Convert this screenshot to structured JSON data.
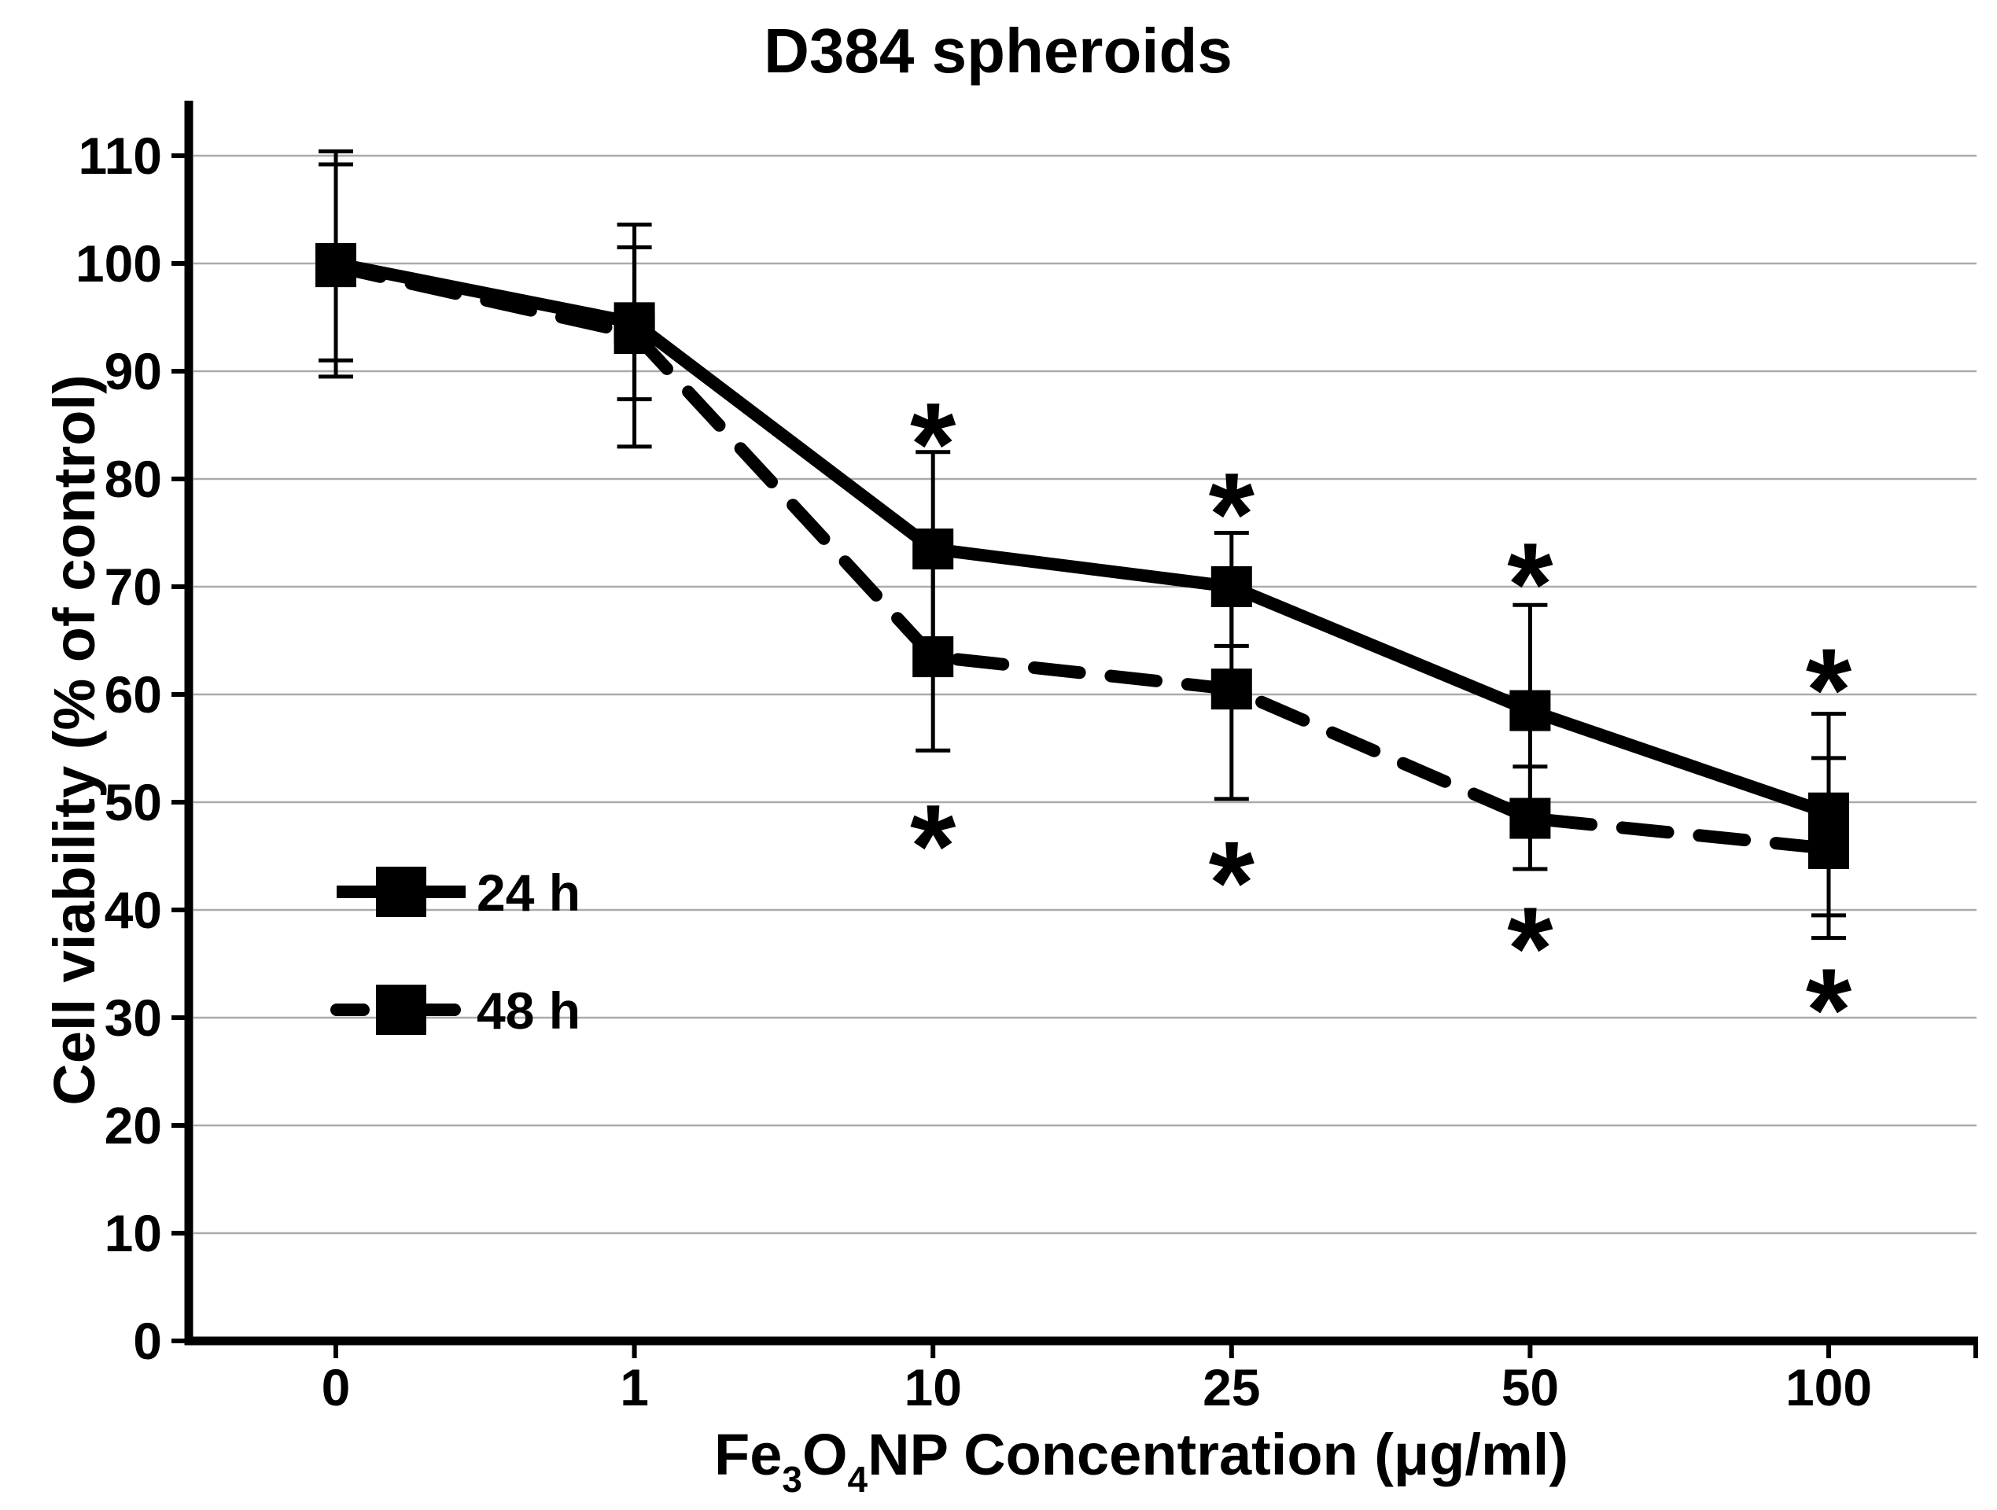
{
  "chart_data": {
    "type": "line",
    "title": "D384 spheroids",
    "xlabel": "Fe₃O₄NP Concentration (μg/ml)",
    "xlabel_parts": [
      {
        "text": "Fe"
      },
      {
        "text": "3",
        "subscript": true
      },
      {
        "text": "O"
      },
      {
        "text": "4",
        "subscript": true
      },
      {
        "text": "NP Concentration (μg/ml)"
      }
    ],
    "ylabel": "Cell viability (% of control)",
    "categories": [
      "0",
      "1",
      "10",
      "25",
      "50",
      "100"
    ],
    "y_ticks": [
      0,
      10,
      20,
      30,
      40,
      50,
      60,
      70,
      80,
      90,
      100,
      110
    ],
    "ylim": [
      0,
      115
    ],
    "grid": "horizontal",
    "legend_position": "inside-left",
    "marker": "filled-square",
    "series": [
      {
        "name": "24 h",
        "line_style": "solid",
        "values": [
          100,
          94.5,
          73.5,
          70,
          58.5,
          49
        ],
        "err_up": [
          10.4,
          9.1,
          9.0,
          5.0,
          9.8,
          9.2
        ],
        "err_down": [
          9.0,
          7.1,
          9.0,
          5.5,
          9.8,
          9.5
        ]
      },
      {
        "name": "48 h",
        "line_style": "dashed",
        "values": [
          99.7,
          93.5,
          63.5,
          60.5,
          48.5,
          45.7
        ],
        "err_up": [
          9.5,
          8.0,
          8.7,
          10.0,
          4.8,
          8.4
        ],
        "err_down": [
          10.2,
          10.5,
          8.7,
          10.2,
          4.7,
          8.3
        ]
      }
    ],
    "significance": {
      "symbol": "*",
      "markers": [
        {
          "series": "24 h",
          "category": "10",
          "position": "above",
          "y": 85
        },
        {
          "series": "24 h",
          "category": "25",
          "position": "above",
          "y": 78.5
        },
        {
          "series": "24 h",
          "category": "50",
          "position": "above",
          "y": 72
        },
        {
          "series": "24 h",
          "category": "100",
          "position": "above",
          "y": 62.2
        },
        {
          "series": "48 h",
          "category": "10",
          "position": "below",
          "y": 47.7
        },
        {
          "series": "48 h",
          "category": "25",
          "position": "below",
          "y": 44.3
        },
        {
          "series": "48 h",
          "category": "50",
          "position": "below",
          "y": 38.2
        },
        {
          "series": "48 h",
          "category": "100",
          "position": "below",
          "y": 32.5
        }
      ]
    },
    "colors": {
      "series": "#000000",
      "grid": "#ababab",
      "background": "#ffffff"
    }
  }
}
